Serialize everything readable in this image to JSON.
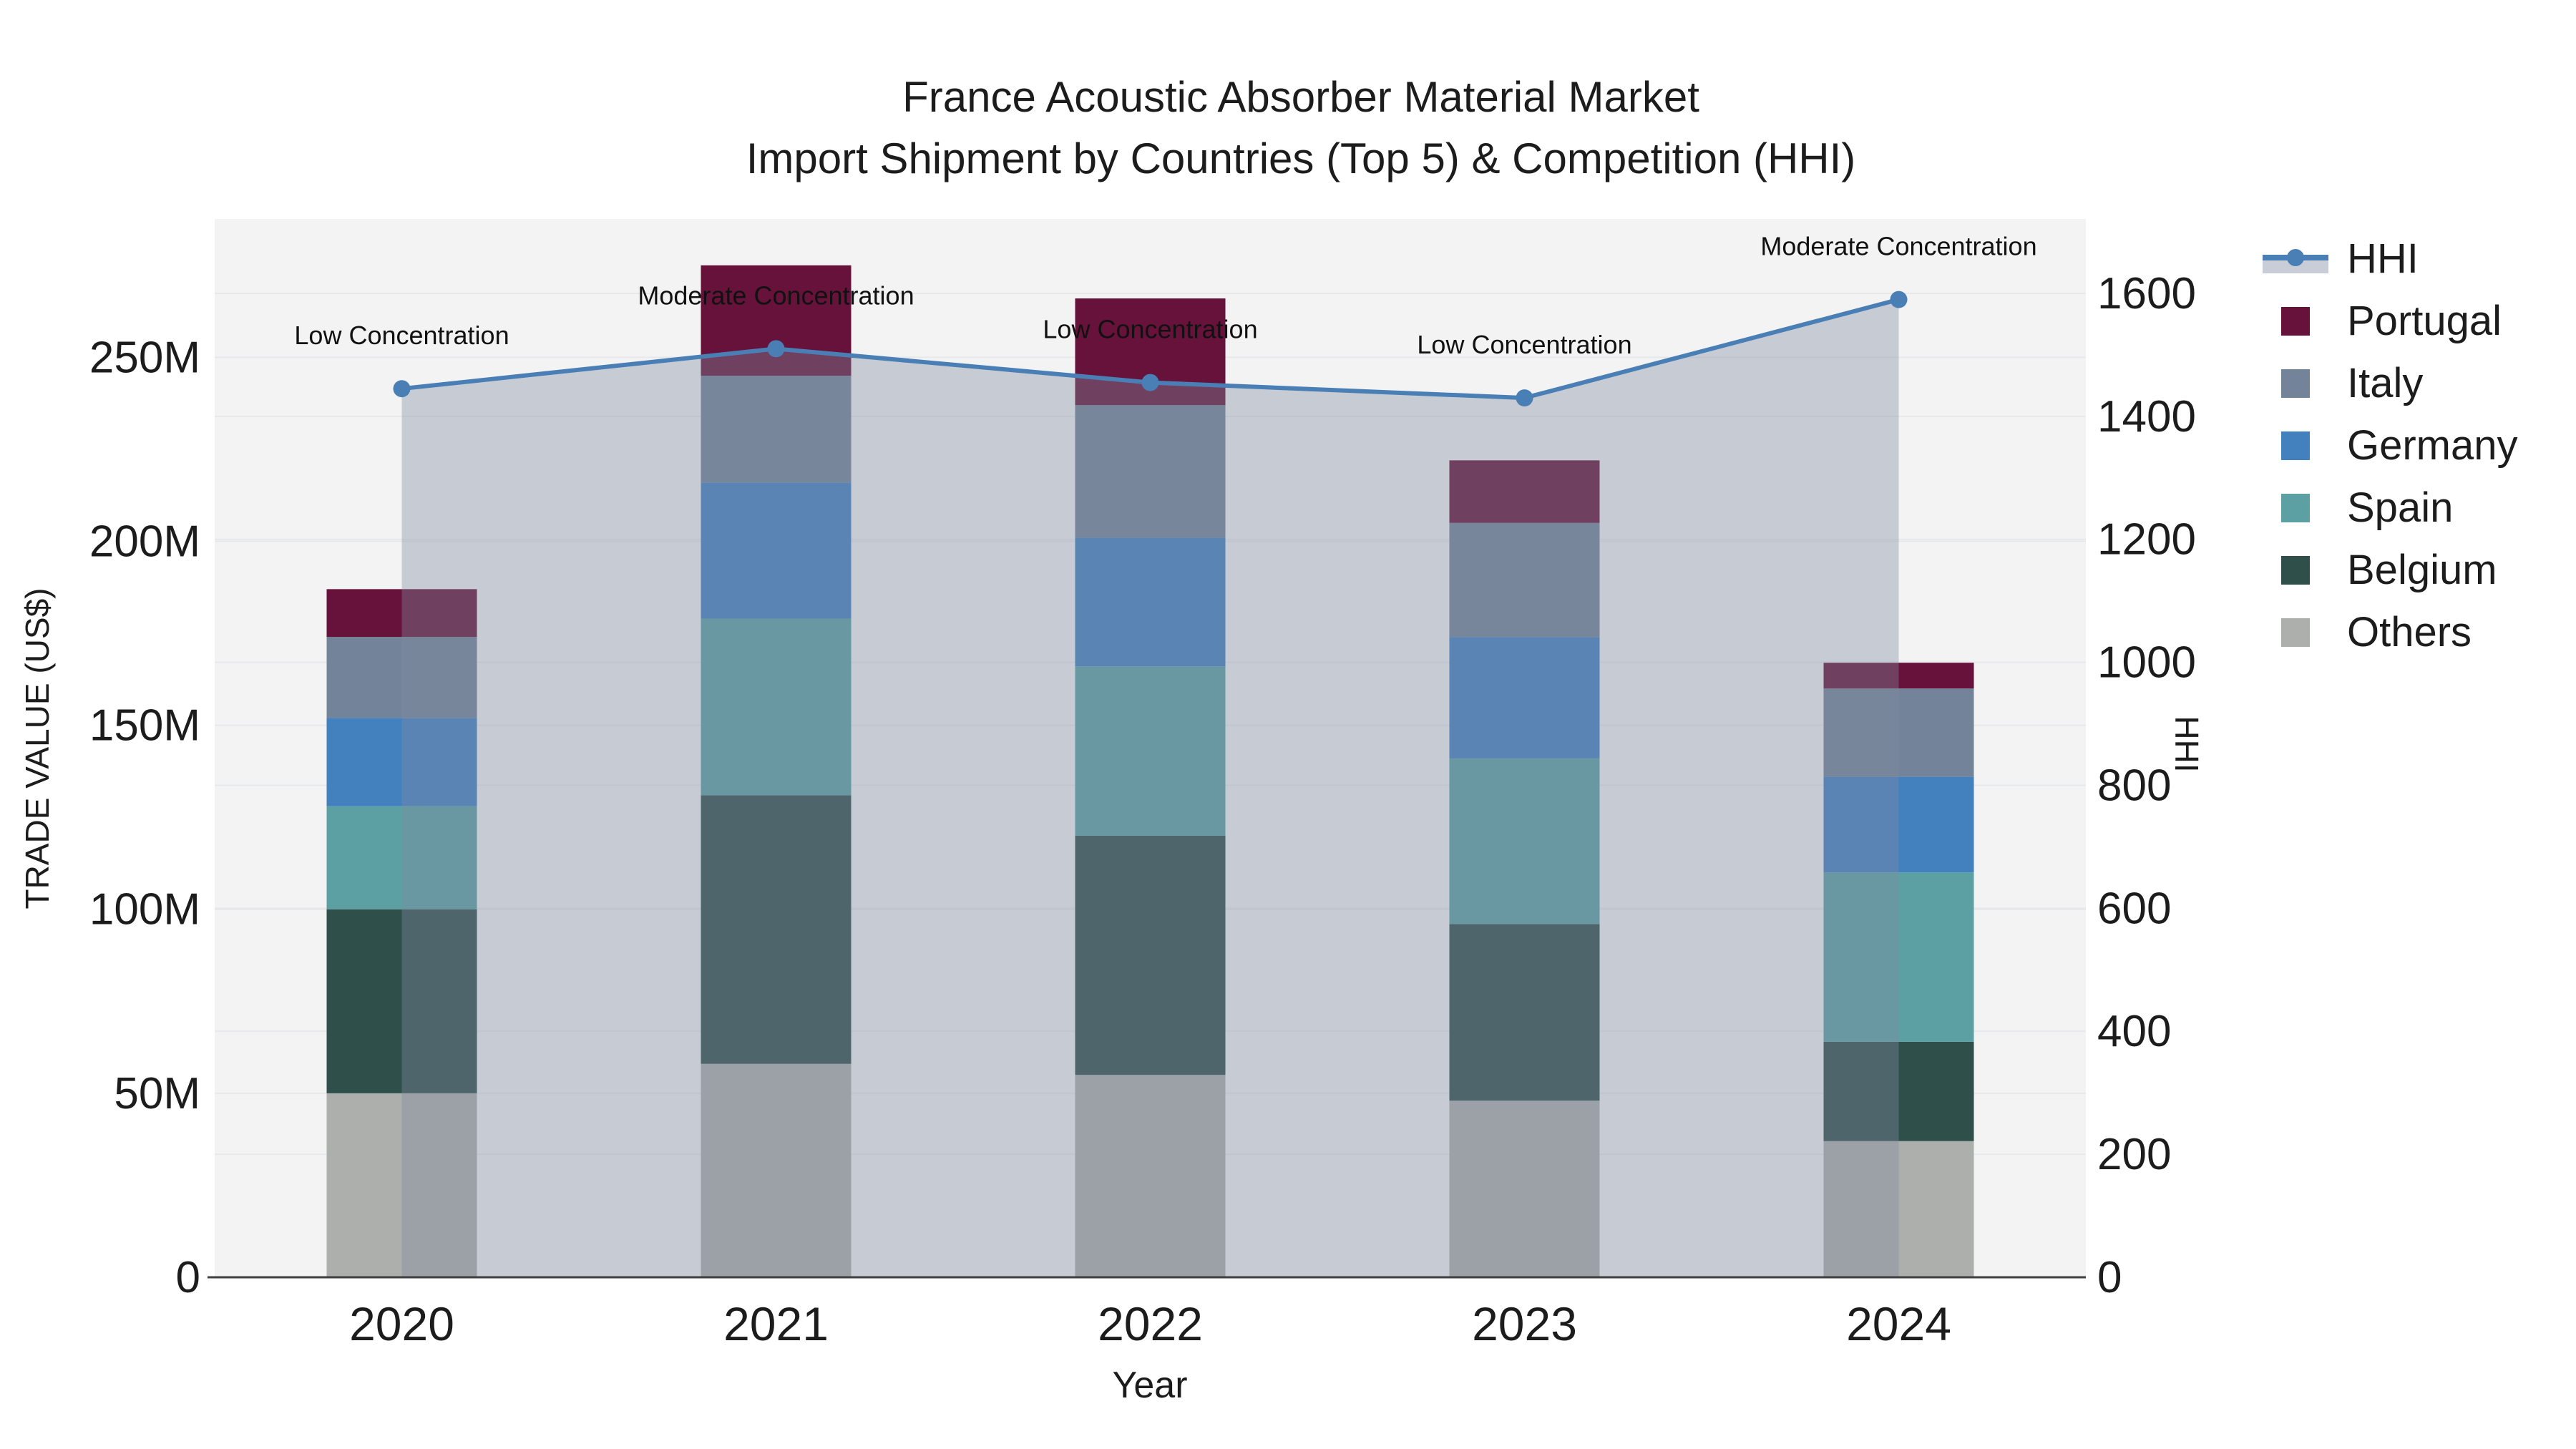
{
  "chart_data": {
    "type": "combo_stacked_bar_line",
    "title_line1": "France Acoustic Absorber Material Market",
    "title_line2": "Import Shipment by Countries (Top 5) & Competition (HHI)",
    "xlabel": "Year",
    "ylabel_left": "TRADE VALUE (US$)",
    "ylabel_right": "HHI",
    "categories": [
      "2020",
      "2021",
      "2022",
      "2023",
      "2024"
    ],
    "unit": "M US$",
    "bar_series": [
      {
        "name": "Others",
        "color": "#ADAFAD",
        "values": [
          50,
          58,
          55,
          48,
          37
        ]
      },
      {
        "name": "Belgium",
        "color": "#2F4F4B",
        "values": [
          50,
          73,
          65,
          48,
          27
        ]
      },
      {
        "name": "Spain",
        "color": "#5CA0A4",
        "values": [
          28,
          48,
          46,
          45,
          46
        ]
      },
      {
        "name": "Germany",
        "color": "#4380BE",
        "values": [
          24,
          37,
          35,
          33,
          26
        ]
      },
      {
        "name": "Italy",
        "color": "#73849A",
        "values": [
          22,
          29,
          36,
          31,
          24
        ]
      },
      {
        "name": "Portugal",
        "color": "#67123A",
        "values": [
          13,
          30,
          29,
          17,
          7
        ]
      }
    ],
    "bar_totals": [
      187,
      275,
      266,
      222,
      167
    ],
    "line_series": {
      "name": "HHI",
      "color": "#4A7FB5",
      "area_fill": "rgba(130,140,160,0.38)",
      "values": [
        1445,
        1510,
        1455,
        1430,
        1590
      ]
    },
    "point_annotations": [
      "Low Concentration",
      "Moderate Concentration",
      "Low Concentration",
      "Low Concentration",
      "Moderate Concentration"
    ],
    "axis_left": {
      "tick_values": [
        0,
        50,
        100,
        150,
        200,
        250
      ],
      "tick_labels": [
        "0",
        "50M",
        "100M",
        "150M",
        "200M",
        "250M"
      ],
      "max": 287.6
    },
    "axis_right": {
      "tick_values": [
        0,
        200,
        400,
        600,
        800,
        1000,
        1200,
        1400,
        1600
      ],
      "tick_labels": [
        "0",
        "200",
        "400",
        "600",
        "800",
        "1000",
        "1200",
        "1400",
        "1600"
      ],
      "max": 1721
    },
    "legend_order": [
      "HHI",
      "Portugal",
      "Italy",
      "Germany",
      "Spain",
      "Belgium",
      "Others"
    ],
    "colors": {
      "plot_bg": "#F3F3F4",
      "grid": "#E7E8EA",
      "axis_line": "#3F3F3F",
      "text": "#1C1C1C",
      "hhi_legend_band": "#C9CDD8"
    }
  }
}
